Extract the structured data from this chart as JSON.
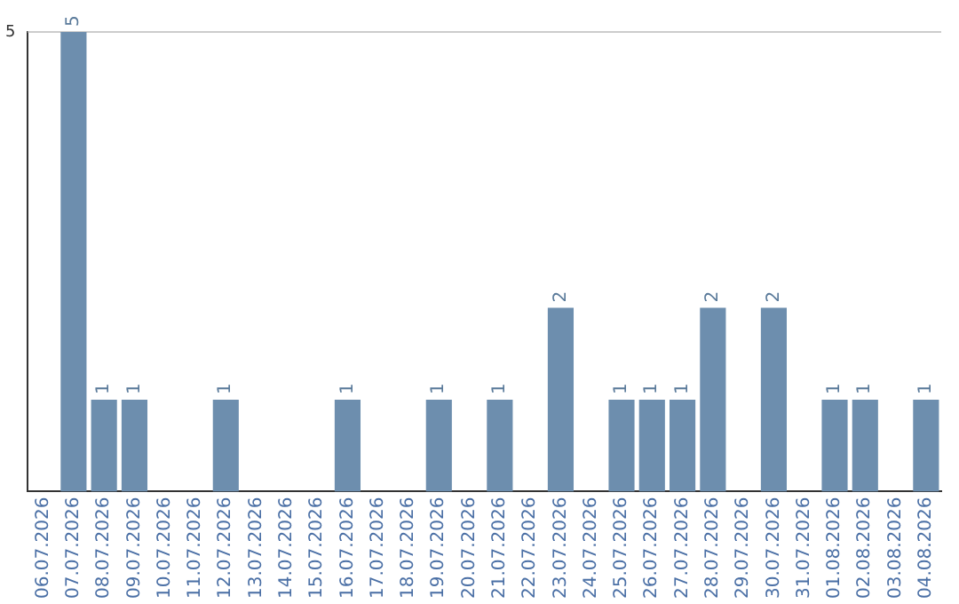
{
  "chart_data": {
    "type": "bar",
    "categories": [
      "06.07.2026",
      "07.07.2026",
      "08.07.2026",
      "09.07.2026",
      "10.07.2026",
      "11.07.2026",
      "12.07.2026",
      "13.07.2026",
      "14.07.2026",
      "15.07.2026",
      "16.07.2026",
      "17.07.2026",
      "18.07.2026",
      "19.07.2026",
      "20.07.2026",
      "21.07.2026",
      "22.07.2026",
      "23.07.2026",
      "24.07.2026",
      "25.07.2026",
      "26.07.2026",
      "27.07.2026",
      "28.07.2026",
      "29.07.2026",
      "30.07.2026",
      "31.07.2026",
      "01.08.2026",
      "02.08.2026",
      "03.08.2026",
      "04.08.2026"
    ],
    "values": [
      null,
      5,
      1,
      1,
      null,
      null,
      1,
      null,
      null,
      null,
      1,
      null,
      null,
      1,
      null,
      1,
      null,
      2,
      null,
      1,
      1,
      1,
      2,
      null,
      2,
      null,
      1,
      1,
      null,
      1
    ],
    "color": "#6d8eae",
    "ylim": [
      0,
      5
    ],
    "yticks": [
      5
    ],
    "ref_lines": [
      {
        "axis": "y",
        "value": 5,
        "color": "#cccccc"
      }
    ],
    "data_labels": true,
    "legend": false
  }
}
